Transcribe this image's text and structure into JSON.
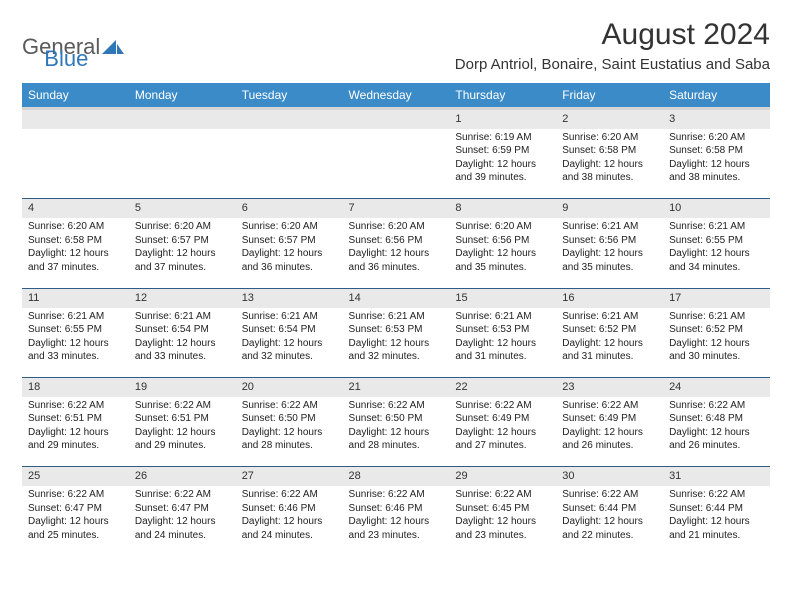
{
  "brand": {
    "part1": "General",
    "part2": "Blue"
  },
  "title": "August 2024",
  "location": "Dorp Antriol, Bonaire, Saint Eustatius and Saba",
  "colors": {
    "header_bg": "#3b8bc9",
    "header_text": "#ffffff",
    "daynum_bg": "#e9e9e9",
    "week_divider": "#2f5b87",
    "logo_gray": "#5a5a5a",
    "logo_blue": "#2f77b8",
    "text": "#222222",
    "page_bg": "#ffffff"
  },
  "typography": {
    "month_title_size": 30,
    "location_size": 15,
    "weekday_size": 12,
    "daynum_size": 11,
    "detail_size": 10,
    "font_family": "Arial"
  },
  "weekdays": [
    "Sunday",
    "Monday",
    "Tuesday",
    "Wednesday",
    "Thursday",
    "Friday",
    "Saturday"
  ],
  "weeks": [
    [
      null,
      null,
      null,
      null,
      {
        "n": "1",
        "sr": "Sunrise: 6:19 AM",
        "ss": "Sunset: 6:59 PM",
        "dl": "Daylight: 12 hours and 39 minutes."
      },
      {
        "n": "2",
        "sr": "Sunrise: 6:20 AM",
        "ss": "Sunset: 6:58 PM",
        "dl": "Daylight: 12 hours and 38 minutes."
      },
      {
        "n": "3",
        "sr": "Sunrise: 6:20 AM",
        "ss": "Sunset: 6:58 PM",
        "dl": "Daylight: 12 hours and 38 minutes."
      }
    ],
    [
      {
        "n": "4",
        "sr": "Sunrise: 6:20 AM",
        "ss": "Sunset: 6:58 PM",
        "dl": "Daylight: 12 hours and 37 minutes."
      },
      {
        "n": "5",
        "sr": "Sunrise: 6:20 AM",
        "ss": "Sunset: 6:57 PM",
        "dl": "Daylight: 12 hours and 37 minutes."
      },
      {
        "n": "6",
        "sr": "Sunrise: 6:20 AM",
        "ss": "Sunset: 6:57 PM",
        "dl": "Daylight: 12 hours and 36 minutes."
      },
      {
        "n": "7",
        "sr": "Sunrise: 6:20 AM",
        "ss": "Sunset: 6:56 PM",
        "dl": "Daylight: 12 hours and 36 minutes."
      },
      {
        "n": "8",
        "sr": "Sunrise: 6:20 AM",
        "ss": "Sunset: 6:56 PM",
        "dl": "Daylight: 12 hours and 35 minutes."
      },
      {
        "n": "9",
        "sr": "Sunrise: 6:21 AM",
        "ss": "Sunset: 6:56 PM",
        "dl": "Daylight: 12 hours and 35 minutes."
      },
      {
        "n": "10",
        "sr": "Sunrise: 6:21 AM",
        "ss": "Sunset: 6:55 PM",
        "dl": "Daylight: 12 hours and 34 minutes."
      }
    ],
    [
      {
        "n": "11",
        "sr": "Sunrise: 6:21 AM",
        "ss": "Sunset: 6:55 PM",
        "dl": "Daylight: 12 hours and 33 minutes."
      },
      {
        "n": "12",
        "sr": "Sunrise: 6:21 AM",
        "ss": "Sunset: 6:54 PM",
        "dl": "Daylight: 12 hours and 33 minutes."
      },
      {
        "n": "13",
        "sr": "Sunrise: 6:21 AM",
        "ss": "Sunset: 6:54 PM",
        "dl": "Daylight: 12 hours and 32 minutes."
      },
      {
        "n": "14",
        "sr": "Sunrise: 6:21 AM",
        "ss": "Sunset: 6:53 PM",
        "dl": "Daylight: 12 hours and 32 minutes."
      },
      {
        "n": "15",
        "sr": "Sunrise: 6:21 AM",
        "ss": "Sunset: 6:53 PM",
        "dl": "Daylight: 12 hours and 31 minutes."
      },
      {
        "n": "16",
        "sr": "Sunrise: 6:21 AM",
        "ss": "Sunset: 6:52 PM",
        "dl": "Daylight: 12 hours and 31 minutes."
      },
      {
        "n": "17",
        "sr": "Sunrise: 6:21 AM",
        "ss": "Sunset: 6:52 PM",
        "dl": "Daylight: 12 hours and 30 minutes."
      }
    ],
    [
      {
        "n": "18",
        "sr": "Sunrise: 6:22 AM",
        "ss": "Sunset: 6:51 PM",
        "dl": "Daylight: 12 hours and 29 minutes."
      },
      {
        "n": "19",
        "sr": "Sunrise: 6:22 AM",
        "ss": "Sunset: 6:51 PM",
        "dl": "Daylight: 12 hours and 29 minutes."
      },
      {
        "n": "20",
        "sr": "Sunrise: 6:22 AM",
        "ss": "Sunset: 6:50 PM",
        "dl": "Daylight: 12 hours and 28 minutes."
      },
      {
        "n": "21",
        "sr": "Sunrise: 6:22 AM",
        "ss": "Sunset: 6:50 PM",
        "dl": "Daylight: 12 hours and 28 minutes."
      },
      {
        "n": "22",
        "sr": "Sunrise: 6:22 AM",
        "ss": "Sunset: 6:49 PM",
        "dl": "Daylight: 12 hours and 27 minutes."
      },
      {
        "n": "23",
        "sr": "Sunrise: 6:22 AM",
        "ss": "Sunset: 6:49 PM",
        "dl": "Daylight: 12 hours and 26 minutes."
      },
      {
        "n": "24",
        "sr": "Sunrise: 6:22 AM",
        "ss": "Sunset: 6:48 PM",
        "dl": "Daylight: 12 hours and 26 minutes."
      }
    ],
    [
      {
        "n": "25",
        "sr": "Sunrise: 6:22 AM",
        "ss": "Sunset: 6:47 PM",
        "dl": "Daylight: 12 hours and 25 minutes."
      },
      {
        "n": "26",
        "sr": "Sunrise: 6:22 AM",
        "ss": "Sunset: 6:47 PM",
        "dl": "Daylight: 12 hours and 24 minutes."
      },
      {
        "n": "27",
        "sr": "Sunrise: 6:22 AM",
        "ss": "Sunset: 6:46 PM",
        "dl": "Daylight: 12 hours and 24 minutes."
      },
      {
        "n": "28",
        "sr": "Sunrise: 6:22 AM",
        "ss": "Sunset: 6:46 PM",
        "dl": "Daylight: 12 hours and 23 minutes."
      },
      {
        "n": "29",
        "sr": "Sunrise: 6:22 AM",
        "ss": "Sunset: 6:45 PM",
        "dl": "Daylight: 12 hours and 23 minutes."
      },
      {
        "n": "30",
        "sr": "Sunrise: 6:22 AM",
        "ss": "Sunset: 6:44 PM",
        "dl": "Daylight: 12 hours and 22 minutes."
      },
      {
        "n": "31",
        "sr": "Sunrise: 6:22 AM",
        "ss": "Sunset: 6:44 PM",
        "dl": "Daylight: 12 hours and 21 minutes."
      }
    ]
  ]
}
